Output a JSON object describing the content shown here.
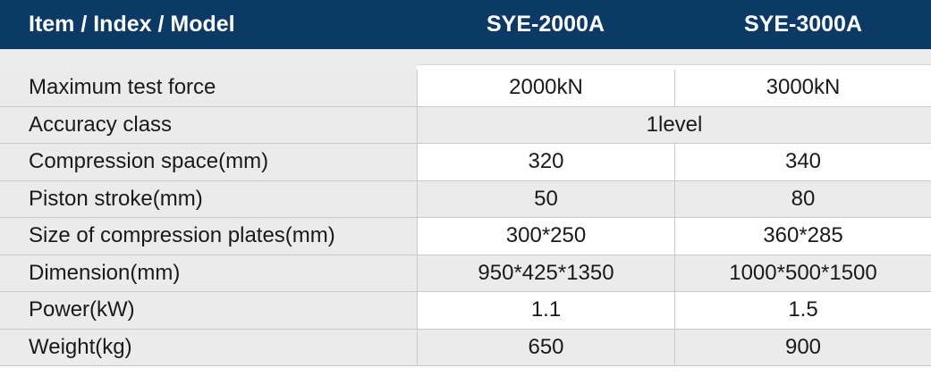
{
  "header": {
    "item": "Item / Index / Model",
    "model_a": "SYE-2000A",
    "model_b": "SYE-3000A"
  },
  "colors": {
    "header_bg": "#0c3a66",
    "row_shade": "#ebebeb"
  },
  "rows": [
    {
      "label": "Maximum test force",
      "a": "2000kN",
      "b": "3000kN"
    },
    {
      "label": "Accuracy class",
      "span": "1level"
    },
    {
      "label": "Compression space(mm)",
      "a": "320",
      "b": "340"
    },
    {
      "label": "Piston stroke(mm)",
      "a": "50",
      "b": "80"
    },
    {
      "label": "Size of compression plates(mm)",
      "a": "300*250",
      "b": "360*285"
    },
    {
      "label": "Dimension(mm)",
      "a": "950*425*1350",
      "b": "1000*500*1500"
    },
    {
      "label": "Power(kW)",
      "a": "1.1",
      "b": "1.5"
    },
    {
      "label": "Weight(kg)",
      "a": "650",
      "b": "900"
    }
  ]
}
